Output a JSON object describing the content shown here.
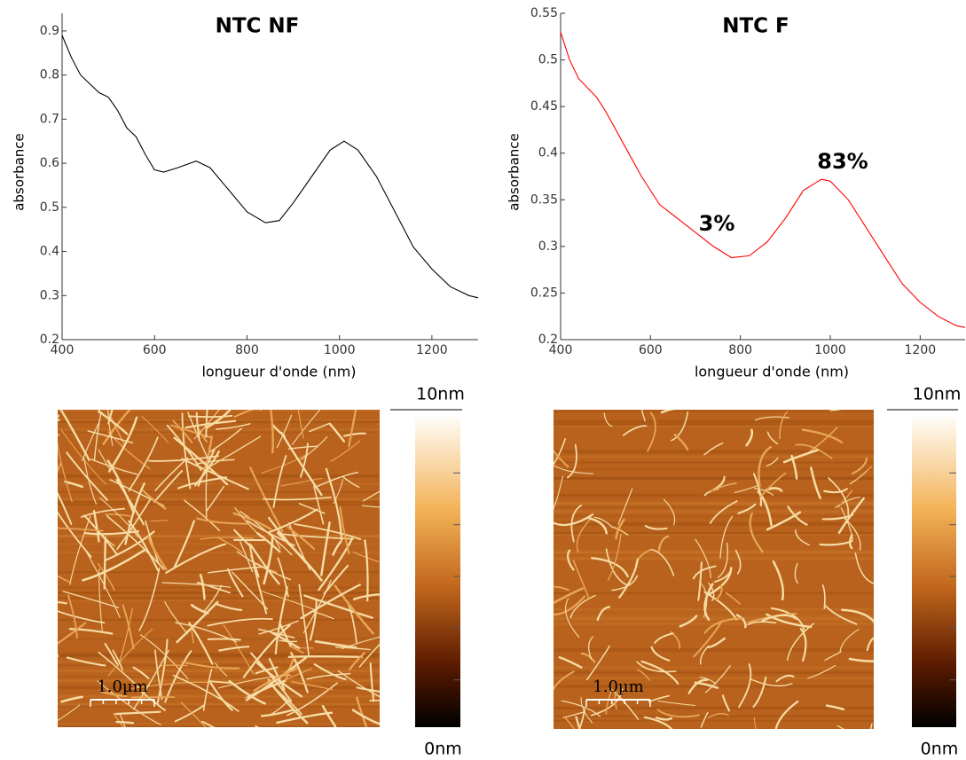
{
  "chart_data": [
    {
      "type": "line",
      "title": "NTC NF",
      "title_color": "#000000",
      "xlabel": "longueur d'onde (nm)",
      "ylabel": "absorbance",
      "x": [
        400,
        420,
        440,
        460,
        480,
        500,
        520,
        540,
        560,
        580,
        600,
        620,
        650,
        690,
        720,
        760,
        800,
        840,
        870,
        900,
        940,
        980,
        1010,
        1040,
        1080,
        1120,
        1160,
        1200,
        1240,
        1280,
        1300
      ],
      "series": [
        {
          "color": "#000000",
          "values": [
            0.89,
            0.84,
            0.8,
            0.78,
            0.76,
            0.75,
            0.72,
            0.68,
            0.66,
            0.62,
            0.585,
            0.58,
            0.59,
            0.605,
            0.59,
            0.54,
            0.49,
            0.465,
            0.47,
            0.51,
            0.57,
            0.63,
            0.65,
            0.63,
            0.57,
            0.49,
            0.41,
            0.36,
            0.32,
            0.3,
            0.295
          ]
        }
      ],
      "xlim": [
        400,
        1300
      ],
      "xticks": [
        400,
        600,
        800,
        1000,
        1200
      ],
      "ylim": [
        0.2,
        0.94
      ],
      "yticks": [
        0.2,
        0.3,
        0.4,
        0.5,
        0.6,
        0.7,
        0.8,
        0.9
      ],
      "grid": false,
      "annotations": []
    },
    {
      "type": "line",
      "title": "NTC F",
      "title_color": "#ff0000",
      "xlabel": "longueur d'onde (nm)",
      "ylabel": "absorbance",
      "x": [
        400,
        420,
        440,
        460,
        480,
        500,
        540,
        580,
        620,
        660,
        700,
        740,
        780,
        820,
        860,
        900,
        940,
        980,
        1000,
        1040,
        1080,
        1120,
        1160,
        1200,
        1240,
        1280,
        1300
      ],
      "series": [
        {
          "color": "#ff0000",
          "values": [
            0.53,
            0.5,
            0.48,
            0.47,
            0.46,
            0.445,
            0.41,
            0.375,
            0.345,
            0.33,
            0.315,
            0.3,
            0.288,
            0.29,
            0.305,
            0.33,
            0.36,
            0.372,
            0.37,
            0.35,
            0.32,
            0.29,
            0.26,
            0.24,
            0.225,
            0.215,
            0.213
          ]
        }
      ],
      "xlim": [
        400,
        1300
      ],
      "xticks": [
        400,
        600,
        800,
        1000,
        1200
      ],
      "ylim": [
        0.2,
        0.55
      ],
      "yticks": [
        0.2,
        0.25,
        0.3,
        0.35,
        0.4,
        0.45,
        0.5,
        0.55
      ],
      "grid": false,
      "annotations": [
        "3%",
        "83%"
      ],
      "annotation_color": "#ff0000"
    }
  ],
  "afm": [
    {
      "scale_bar": "1.0µm",
      "colorbar_max": "10nm",
      "colorbar_min": "0nm"
    },
    {
      "scale_bar": "1.0µm",
      "colorbar_max": "10nm",
      "colorbar_min": "0nm"
    }
  ]
}
